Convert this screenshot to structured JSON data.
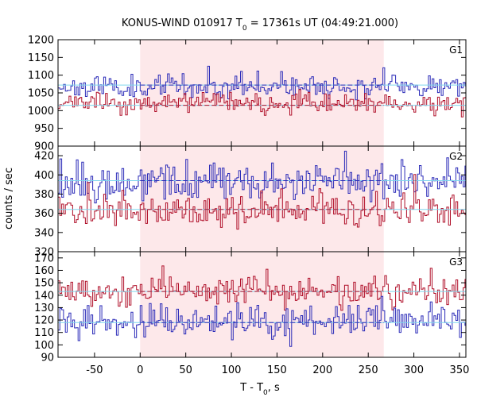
{
  "chart_data": {
    "type": "line",
    "title": "KONUS-WIND 010917 T",
    "title_sub": "0",
    "title_rest": " = 17361s UT (04:49:21.000)",
    "xlabel": "T - T",
    "xlabel_sub": "0",
    "xlabel_rest": ", s",
    "ylabel": "counts / sec",
    "xlim": [
      -90,
      357
    ],
    "x_ticks": [
      -50,
      0,
      50,
      100,
      150,
      200,
      250,
      300,
      350
    ],
    "x_tick_labels": [
      "-50",
      "0",
      "50",
      "100",
      "150",
      "200",
      "250",
      "300",
      "350"
    ],
    "highlight_interval": [
      0,
      267
    ],
    "highlight_color": "#fde8ea",
    "colors": {
      "blue": "#2b2bb8",
      "red": "#b0102a",
      "background_fit": "#7fd6ee"
    },
    "panels": [
      {
        "label": "G1",
        "ylim": [
          900,
          1200
        ],
        "y_ticks": [
          900,
          950,
          1000,
          1050,
          1100,
          1150,
          1200
        ],
        "y_tick_labels": [
          "900",
          "950",
          "1000",
          "1050",
          "1100",
          "1150",
          "1200"
        ],
        "series": [
          {
            "color": "blue",
            "mean": 1068,
            "sd": 15,
            "fit": 1072,
            "seed": 11
          },
          {
            "color": "red",
            "mean": 1020,
            "sd": 13,
            "fit": 1015,
            "seed": 23
          }
        ]
      },
      {
        "label": "G2",
        "ylim": [
          320,
          430
        ],
        "y_ticks": [
          320,
          340,
          360,
          380,
          400,
          420
        ],
        "y_tick_labels": [
          "320",
          "340",
          "360",
          "380",
          "400",
          "420"
        ],
        "series": [
          {
            "color": "blue",
            "mean": 392,
            "sd": 10,
            "fit": 394,
            "seed": 37
          },
          {
            "color": "red",
            "mean": 362,
            "sd": 9,
            "fit": 364,
            "seed": 41
          }
        ]
      },
      {
        "label": "G3",
        "ylim": [
          90,
          175
        ],
        "y_ticks": [
          90,
          100,
          110,
          120,
          130,
          140,
          150,
          160,
          170
        ],
        "y_tick_labels": [
          "90",
          "100",
          "110",
          "120",
          "130",
          "140",
          "150",
          "160",
          "170"
        ],
        "series": [
          {
            "color": "red",
            "mean": 143,
            "sd": 6,
            "fit": 143,
            "seed": 53
          },
          {
            "color": "blue",
            "mean": 118,
            "sd": 6,
            "fit": 118,
            "seed": 67
          }
        ]
      }
    ],
    "bin_width": 2
  }
}
